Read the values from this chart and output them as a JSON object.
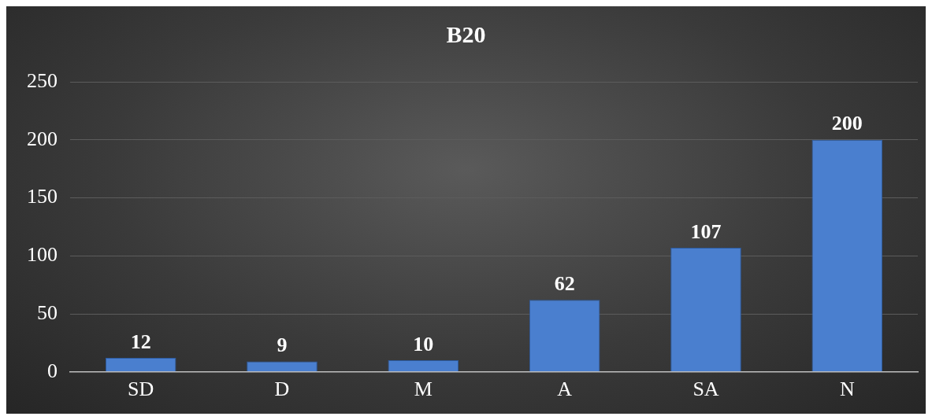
{
  "chart_data": {
    "type": "bar",
    "title": "B20",
    "categories": [
      "SD",
      "D",
      "M",
      "A",
      "SA",
      "N"
    ],
    "values": [
      12,
      9,
      10,
      62,
      107,
      200
    ],
    "color": "#4a7fcf",
    "ylim": [
      0,
      250
    ],
    "yticks": [
      0,
      50,
      100,
      150,
      200,
      250
    ],
    "grid": "y",
    "data_labels": true
  }
}
